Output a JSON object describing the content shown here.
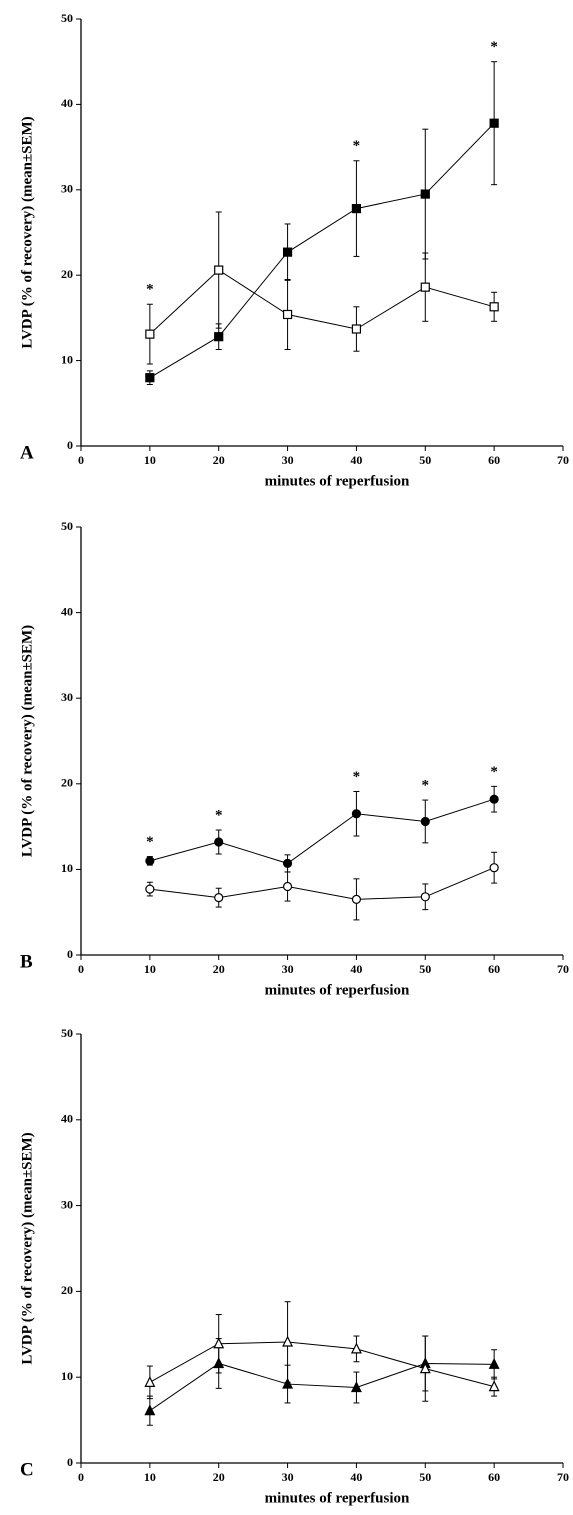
{
  "chart_data": [
    {
      "type": "line",
      "panel_label": "A",
      "xlabel": "minutes of reperfusion",
      "ylabel": "LVDP (% of recovery) (mean±SEM)",
      "x": [
        10,
        20,
        30,
        40,
        50,
        60
      ],
      "xlim": [
        0,
        70
      ],
      "xticks": [
        0,
        10,
        20,
        30,
        40,
        50,
        60,
        70
      ],
      "ylim": [
        0,
        50
      ],
      "yticks": [
        0,
        10,
        20,
        30,
        40,
        50
      ],
      "series": [
        {
          "marker": "square",
          "filled": true,
          "color": "#000000",
          "values": [
            8.0,
            12.8,
            22.7,
            27.8,
            29.5,
            37.8
          ],
          "errors": [
            0.8,
            1.5,
            3.3,
            5.6,
            7.6,
            7.2
          ]
        },
        {
          "marker": "square",
          "filled": false,
          "color": "#000000",
          "values": [
            13.1,
            20.6,
            15.4,
            13.7,
            18.6,
            16.3
          ],
          "errors": [
            3.5,
            6.8,
            4.1,
            2.6,
            4.0,
            1.7
          ]
        }
      ],
      "annotations": [
        {
          "x": 10,
          "text": "*"
        },
        {
          "x": 40,
          "text": "*"
        },
        {
          "x": 60,
          "text": "*"
        }
      ]
    },
    {
      "type": "line",
      "panel_label": "B",
      "xlabel": "minutes of reperfusion",
      "ylabel": "LVDP (% of recovery) (mean±SEM)",
      "x": [
        10,
        20,
        30,
        40,
        50,
        60
      ],
      "xlim": [
        0,
        70
      ],
      "xticks": [
        0,
        10,
        20,
        30,
        40,
        50,
        60,
        70
      ],
      "ylim": [
        0,
        50
      ],
      "yticks": [
        0,
        10,
        20,
        30,
        40,
        50
      ],
      "series": [
        {
          "marker": "circle",
          "filled": true,
          "color": "#000000",
          "values": [
            11.0,
            13.2,
            10.7,
            16.5,
            15.6,
            18.2
          ],
          "errors": [
            0.5,
            1.4,
            1.0,
            2.6,
            2.5,
            1.5
          ]
        },
        {
          "marker": "circle",
          "filled": false,
          "color": "#000000",
          "values": [
            7.7,
            6.7,
            8.0,
            6.5,
            6.8,
            10.2
          ],
          "errors": [
            0.8,
            1.1,
            1.7,
            2.4,
            1.5,
            1.8
          ]
        }
      ],
      "annotations": [
        {
          "x": 10,
          "text": "*"
        },
        {
          "x": 20,
          "text": "*"
        },
        {
          "x": 40,
          "text": "*"
        },
        {
          "x": 50,
          "text": "*"
        },
        {
          "x": 60,
          "text": "*"
        }
      ]
    },
    {
      "type": "line",
      "panel_label": "C",
      "xlabel": "minutes of reperfusion",
      "ylabel": "LVDP (% of recovery) (mean±SEM)",
      "x": [
        10,
        20,
        30,
        40,
        50,
        60
      ],
      "xlim": [
        0,
        70
      ],
      "xticks": [
        0,
        10,
        20,
        30,
        40,
        50,
        60,
        70
      ],
      "ylim": [
        0,
        50
      ],
      "yticks": [
        0,
        10,
        20,
        30,
        40,
        50
      ],
      "series": [
        {
          "marker": "triangle",
          "filled": true,
          "color": "#000000",
          "values": [
            6.1,
            11.6,
            9.2,
            8.8,
            11.6,
            11.5
          ],
          "errors": [
            1.7,
            2.9,
            2.2,
            1.8,
            3.2,
            1.7
          ]
        },
        {
          "marker": "triangle",
          "filled": false,
          "color": "#000000",
          "values": [
            9.4,
            13.9,
            14.1,
            13.3,
            11.0,
            8.9
          ],
          "errors": [
            1.9,
            3.4,
            4.7,
            1.5,
            3.8,
            1.1
          ]
        }
      ],
      "annotations": []
    }
  ]
}
